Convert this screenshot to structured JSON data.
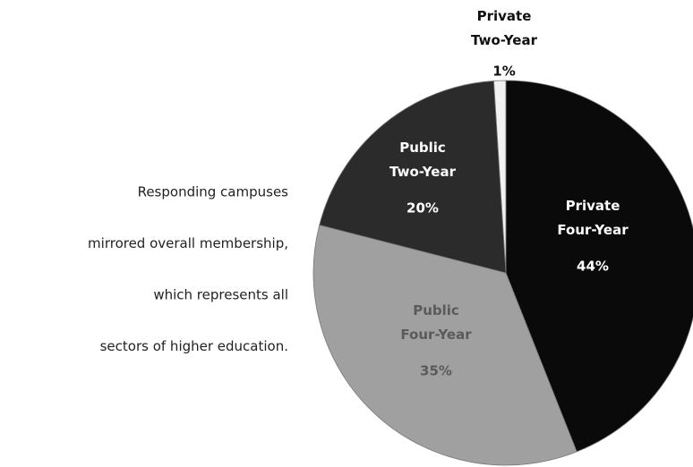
{
  "chart_data": {
    "type": "pie",
    "categories": [
      "Private Four-Year",
      "Public Four-Year",
      "Public Two-Year",
      "Private Two-Year"
    ],
    "values": [
      44,
      35,
      20,
      1
    ],
    "value_labels": [
      "44%",
      "35%",
      "20%",
      "1%"
    ],
    "colors": [
      "#0a0a0a",
      "#a0a0a0",
      "#2b2b2b",
      "#f2f2f2"
    ],
    "label_colors": [
      "#ffffff",
      "#5a5a5a",
      "#ffffff",
      "#111111"
    ],
    "annotation": [
      "Responding campuses",
      "mirrored overall membership,",
      "which represents all",
      "sectors of higher education."
    ]
  }
}
